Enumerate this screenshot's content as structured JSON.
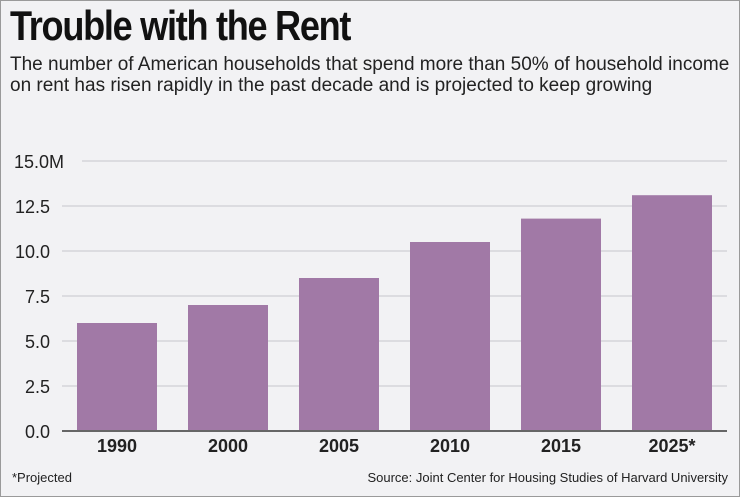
{
  "chart_data": {
    "type": "bar",
    "title": "Trouble with the Rent",
    "subtitle": "The number of American households that spend more than 50% of household income on rent has risen rapidly in the past decade and is projected to keep growing",
    "categories": [
      "1990",
      "2000",
      "2005",
      "2010",
      "2015",
      "2025*"
    ],
    "values": [
      6.0,
      7.0,
      8.5,
      10.5,
      11.8,
      13.1
    ],
    "ylim": [
      0,
      15
    ],
    "yticks": [
      "0.0",
      "2.5",
      "5.0",
      "7.5",
      "10.0",
      "12.5",
      "15.0M"
    ],
    "xlabel": "",
    "ylabel": "",
    "grid": true,
    "bar_color": "#a179a6",
    "note": "*Projected",
    "source": "Source: Joint Center for Housing Studies of Harvard University"
  }
}
